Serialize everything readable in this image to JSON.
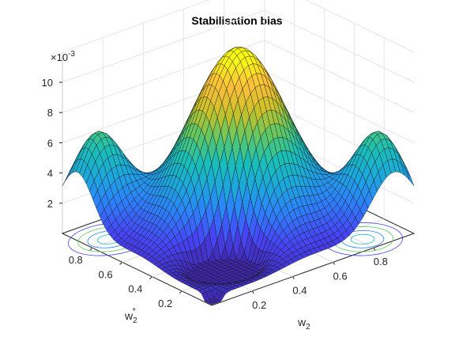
{
  "chart_data": {
    "type": "surface",
    "title": "Stabilisation bias",
    "xlabel": "w",
    "xlabel_sub": "2",
    "ylabel": "w",
    "ylabel_sub": "2",
    "ylabel_sup": "*",
    "zlabel": "",
    "z_exponent_label": "×10",
    "z_exponent_power": "-3",
    "xticks": [
      0.2,
      0.4,
      0.6,
      0.8
    ],
    "xtick_labels": [
      "0.2",
      "0.4",
      "0.6",
      "0.8"
    ],
    "yticks": [
      0.2,
      0.4,
      0.6,
      0.8
    ],
    "ytick_labels": [
      "0.2",
      "0.4",
      "0.6",
      "0.8"
    ],
    "zticks": [
      2,
      4,
      6,
      8,
      10
    ],
    "ztick_labels": [
      "2",
      "4",
      "6",
      "8",
      "10"
    ],
    "xlim": [
      0,
      1
    ],
    "ylim": [
      0,
      1
    ],
    "zlim": [
      0,
      12
    ],
    "z_scale": 0.001,
    "grid": true,
    "colormap": "parula",
    "colormap_stops": [
      "#3e26a8",
      "#4743f6",
      "#2d7ffd",
      "#1ca7dc",
      "#19bfb7",
      "#60c864",
      "#c9c128",
      "#fdbe3c",
      "#f9fb14"
    ],
    "surface_samples": [
      {
        "w2": 0.5,
        "w2_star": 0.5,
        "z": 11.8
      },
      {
        "w2": 0.5,
        "w2_star": 0.25,
        "z": 4.8
      },
      {
        "w2": 0.25,
        "w2_star": 0.5,
        "z": 4.8
      },
      {
        "w2": 0.9,
        "w2_star": 0.1,
        "z": 6.3
      },
      {
        "w2": 0.1,
        "w2_star": 0.9,
        "z": 6.3
      },
      {
        "w2": 0.05,
        "w2_star": 0.05,
        "z": 0.2
      },
      {
        "w2": 0.95,
        "w2_star": 0.95,
        "z": 0.8
      },
      {
        "w2": 0.7,
        "w2_star": 0.7,
        "z": 6.0
      }
    ]
  }
}
